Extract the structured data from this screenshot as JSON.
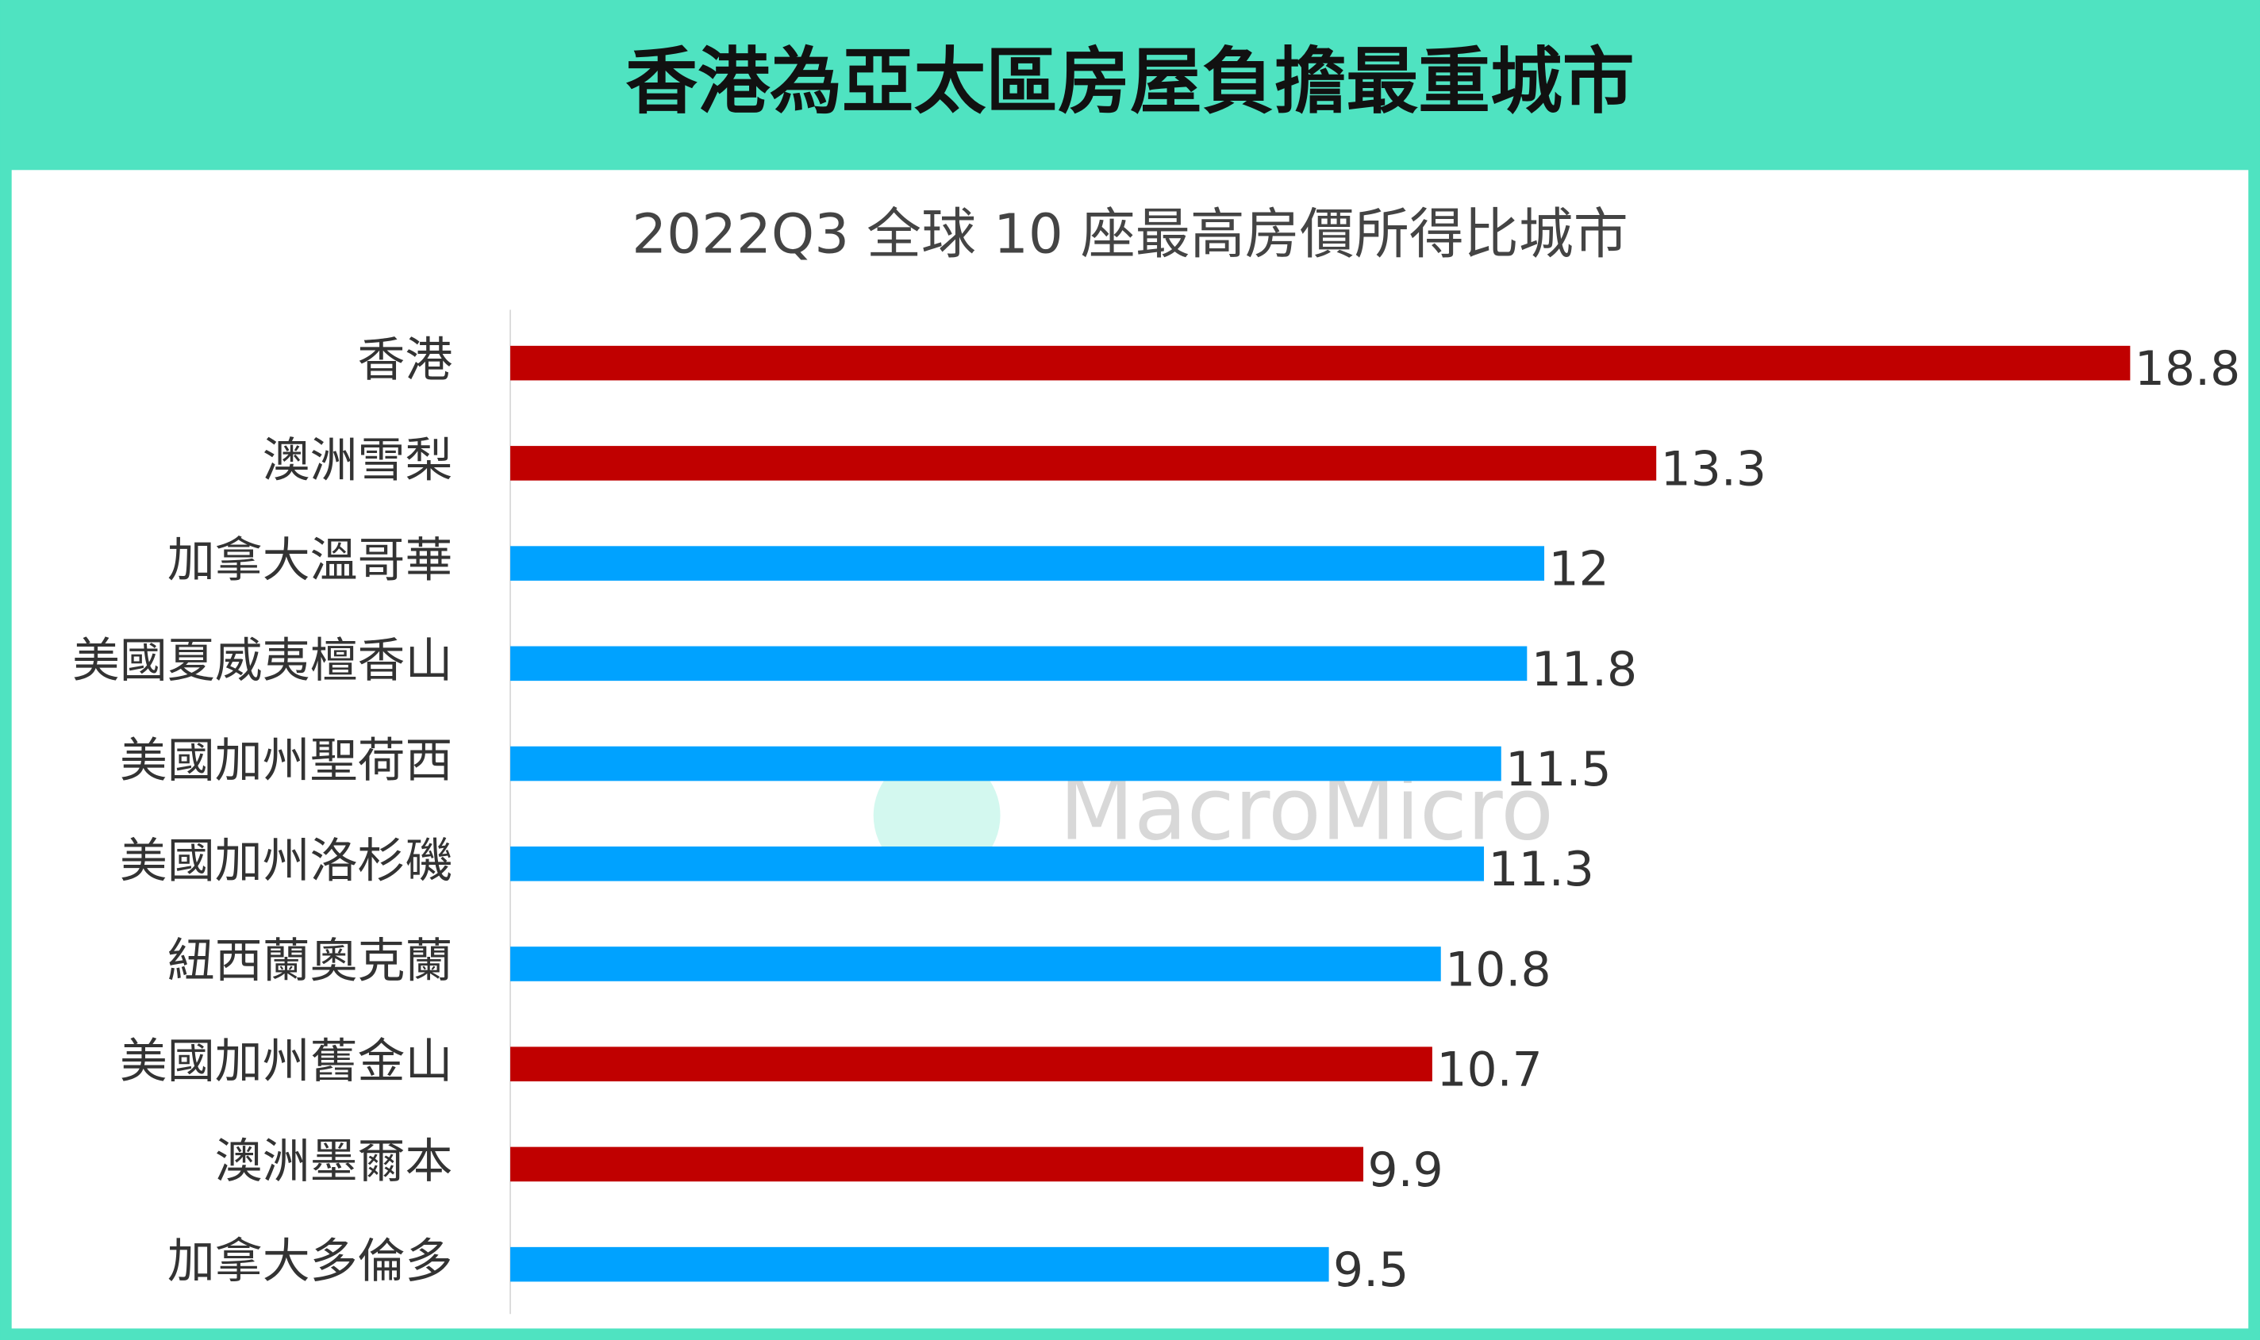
{
  "chart_data": {
    "type": "bar",
    "orientation": "horizontal",
    "title": "香港為亞太區房屋負擔最重城市",
    "subtitle": "2022Q3 全球 10 座最高房價所得比城市",
    "watermark": "MacroMicro",
    "categories": [
      "香港",
      "澳洲雪梨",
      "加拿大溫哥華",
      "美國夏威夷檀香山",
      "美國加州聖荷西",
      "美國加州洛杉磯",
      "紐西蘭奧克蘭",
      "美國加州舊金山",
      "澳洲墨爾本",
      "加拿大多倫多"
    ],
    "values": [
      18.8,
      13.3,
      12,
      11.8,
      11.5,
      11.3,
      10.8,
      10.7,
      9.9,
      9.5
    ],
    "colors": [
      "#c00000",
      "#c00000",
      "#00a2ff",
      "#00a2ff",
      "#00a2ff",
      "#00a2ff",
      "#00a2ff",
      "#c00000",
      "#c00000",
      "#00a2ff"
    ]
  }
}
